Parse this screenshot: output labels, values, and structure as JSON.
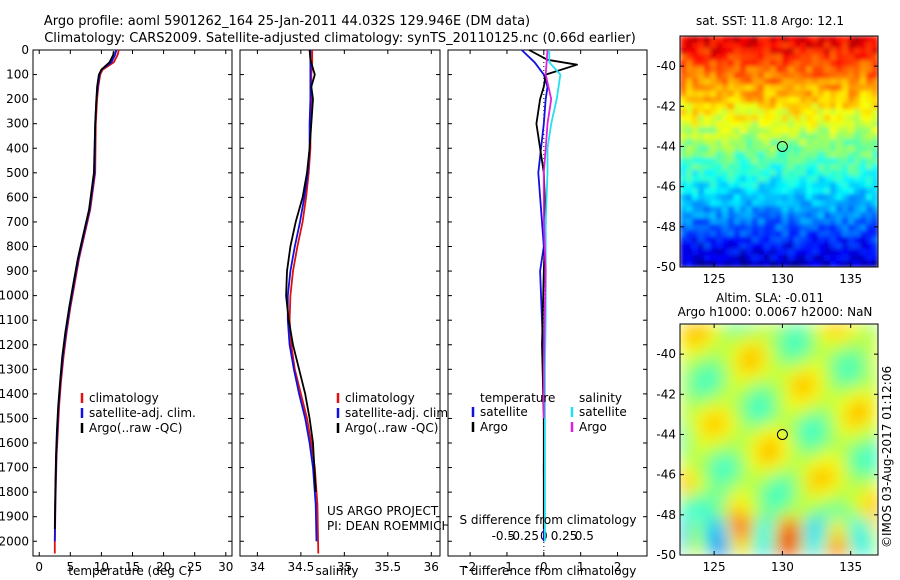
{
  "header": {
    "title_line1": "Argo profile: aoml 5901262_164 25-Jan-2011 44.032S 129.946E (DM data)",
    "title_line2": "Climatology: CARS2009. Satellite-adjusted climatology: synTS_20110125.nc (0.66d earlier)"
  },
  "colors": {
    "climatology": "#e01010",
    "satellite_adj": "#1010e0",
    "argo": "#000000",
    "sat_salinity": "#22e0f0",
    "argo_salinity": "#e020e0",
    "marker": "#000000"
  },
  "chart_data": [
    {
      "type": "line",
      "panel": "temperature",
      "xlabel": "temperature (deg C)",
      "xlim": [
        -1,
        31
      ],
      "xticks": [
        0,
        5,
        10,
        15,
        20,
        25,
        30
      ],
      "ylim": [
        2060,
        0
      ],
      "yticks": [
        0,
        100,
        200,
        300,
        400,
        500,
        600,
        700,
        800,
        900,
        1000,
        1100,
        1200,
        1300,
        1400,
        1500,
        1600,
        1700,
        1800,
        1900,
        2000
      ],
      "legend": [
        "climatology",
        "satellite-adj. clim.",
        "Argo(..raw -QC)"
      ],
      "series": [
        {
          "name": "climatology",
          "color": "#e01010",
          "x": [
            12.8,
            12.6,
            12.0,
            10.2,
            9.8,
            9.5,
            9.3,
            9.1,
            9.0,
            8.2,
            7.3,
            6.4,
            5.7,
            5.0,
            4.4,
            3.9,
            3.5,
            3.2,
            3.0,
            2.8,
            2.7,
            2.6,
            2.55,
            2.5,
            2.5
          ],
          "y": [
            0,
            20,
            50,
            80,
            100,
            150,
            200,
            300,
            500,
            650,
            750,
            850,
            950,
            1050,
            1150,
            1250,
            1350,
            1450,
            1550,
            1650,
            1750,
            1850,
            1950,
            2000,
            2050
          ]
        },
        {
          "name": "satellite-adj. clim.",
          "color": "#1010e0",
          "x": [
            12.4,
            12.2,
            11.6,
            10.0,
            9.7,
            9.4,
            9.2,
            9.0,
            8.9,
            8.1,
            7.2,
            6.3,
            5.6,
            4.9,
            4.3,
            3.8,
            3.4,
            3.1,
            2.9,
            2.75,
            2.65,
            2.58,
            2.52,
            2.5
          ],
          "y": [
            0,
            20,
            50,
            80,
            100,
            150,
            200,
            300,
            500,
            650,
            750,
            850,
            950,
            1050,
            1150,
            1250,
            1350,
            1450,
            1550,
            1650,
            1750,
            1850,
            1950,
            2000
          ]
        },
        {
          "name": "Argo(..raw -QC)",
          "color": "#000000",
          "x": [
            12.0,
            11.9,
            11.3,
            10.0,
            9.6,
            9.3,
            9.2,
            9.0,
            8.8,
            8.0,
            7.1,
            6.2,
            5.5,
            4.8,
            4.2,
            3.7,
            3.35,
            3.05,
            2.85,
            2.7,
            2.62,
            2.55,
            2.5
          ],
          "y": [
            5,
            20,
            50,
            80,
            100,
            150,
            200,
            300,
            500,
            650,
            750,
            850,
            950,
            1050,
            1150,
            1250,
            1350,
            1450,
            1550,
            1650,
            1750,
            1850,
            1950
          ]
        }
      ]
    },
    {
      "type": "line",
      "panel": "salinity",
      "xlabel": "salinity",
      "xlim": [
        33.8,
        36.1
      ],
      "xticks": [
        34,
        34.5,
        35,
        35.5,
        36
      ],
      "ylim": [
        2060,
        0
      ],
      "legend": [
        "climatology",
        "satellite-adj. clim.",
        "Argo(..raw -QC)"
      ],
      "annotation": [
        "US ARGO PROJECT",
        "PI: DEAN ROEMMICH"
      ],
      "series": [
        {
          "name": "climatology",
          "color": "#e01010",
          "x": [
            34.63,
            34.63,
            34.62,
            34.62,
            34.61,
            34.61,
            34.59,
            34.56,
            34.52,
            34.46,
            34.41,
            34.38,
            34.37,
            34.39,
            34.43,
            34.5,
            34.57,
            34.62,
            34.66,
            34.69,
            34.7
          ],
          "y": [
            0,
            50,
            100,
            200,
            300,
            400,
            500,
            600,
            700,
            800,
            900,
            1000,
            1100,
            1200,
            1300,
            1400,
            1500,
            1600,
            1700,
            1850,
            2050
          ]
        },
        {
          "name": "satellite-adj. clim.",
          "color": "#1010e0",
          "x": [
            34.61,
            34.61,
            34.61,
            34.61,
            34.6,
            34.6,
            34.58,
            34.54,
            34.49,
            34.43,
            34.38,
            34.35,
            34.35,
            34.37,
            34.42,
            34.48,
            34.55,
            34.6,
            34.64,
            34.67,
            34.68
          ],
          "y": [
            0,
            50,
            100,
            200,
            300,
            400,
            500,
            600,
            700,
            800,
            900,
            1000,
            1100,
            1200,
            1300,
            1400,
            1500,
            1600,
            1700,
            1850,
            2000
          ]
        },
        {
          "name": "Argo(..raw -QC)",
          "color": "#000000",
          "x": [
            34.6,
            34.61,
            34.66,
            34.62,
            34.64,
            34.62,
            34.6,
            34.57,
            34.52,
            34.44,
            34.38,
            34.34,
            34.33,
            34.36,
            34.41,
            34.48,
            34.55,
            34.6,
            34.64,
            34.67
          ],
          "y": [
            0,
            40,
            100,
            150,
            200,
            300,
            400,
            500,
            600,
            700,
            800,
            900,
            1000,
            1100,
            1200,
            1300,
            1400,
            1500,
            1600,
            1800
          ]
        }
      ]
    },
    {
      "type": "line",
      "panel": "difference",
      "xlabel": "T difference from climatology",
      "xlim": [
        -2.6,
        2.8
      ],
      "xticks": [
        -2,
        -1,
        0,
        1,
        2
      ],
      "top_label": "S difference from climatology",
      "top_ticks": [
        "-0.5",
        "-0.25",
        "0",
        "0.25",
        "0.5"
      ],
      "ylim": [
        2060,
        0
      ],
      "legend_titles": [
        "temperature",
        "salinity"
      ],
      "legend": [
        "satellite",
        "Argo",
        "satellite",
        "Argo"
      ],
      "series": [
        {
          "name": "satellite",
          "color": "#1010e0",
          "x": [
            -0.6,
            -0.25,
            0.0,
            0.1,
            0.05,
            0.0,
            -0.15,
            -0.05,
            0.0,
            -0.1,
            -0.05,
            0.0,
            0.02,
            0.0,
            0.01,
            0.0
          ],
          "y": [
            0,
            50,
            100,
            150,
            200,
            300,
            500,
            700,
            800,
            900,
            1100,
            1300,
            1500,
            1700,
            1900,
            2000
          ]
        },
        {
          "name": "Argo",
          "color": "#000000",
          "x": [
            -0.4,
            0.1,
            0.9,
            0.05,
            0.0,
            -0.1,
            -0.2,
            0.0,
            0.05,
            0.0,
            -0.05,
            0.0,
            0.0
          ],
          "y": [
            0,
            40,
            60,
            100,
            150,
            200,
            300,
            500,
            700,
            900,
            1200,
            1500,
            1950
          ]
        },
        {
          "name": "satellite",
          "color": "#22e0f0",
          "x": [
            0.15,
            0.15,
            0.45,
            0.35,
            0.2,
            0.1,
            0.1,
            0.05,
            0.05,
            0.05,
            0.03,
            0.03,
            0.03
          ],
          "y": [
            0,
            50,
            100,
            200,
            300,
            400,
            500,
            700,
            900,
            1100,
            1300,
            1600,
            2000
          ]
        },
        {
          "name": "Argo",
          "color": "#e020e0",
          "x": [
            0.1,
            0.05,
            0.2,
            0.1,
            0.05,
            0.0,
            0.0,
            0.05,
            0.02,
            0.0,
            0.0
          ],
          "y": [
            0,
            100,
            200,
            300,
            400,
            500,
            700,
            900,
            1100,
            1300,
            1500
          ]
        }
      ]
    },
    {
      "type": "heatmap",
      "panel": "sst_map",
      "title": "sat. SST: 11.8  Argo: 12.1",
      "xticks": [
        125,
        130,
        135
      ],
      "xlim": [
        122.5,
        137
      ],
      "yticks": [
        -40,
        -42,
        -44,
        -46,
        -48,
        -50
      ],
      "ylim": [
        -50,
        -38.5
      ],
      "marker": [
        130,
        -44
      ]
    },
    {
      "type": "heatmap",
      "panel": "sla_map",
      "title_line1": "Altim. SLA: -0.011",
      "title_line2": "Argo h1000: 0.0067  h2000: NaN",
      "xticks": [
        125,
        130,
        135
      ],
      "xlim": [
        122.5,
        137
      ],
      "yticks": [
        -40,
        -42,
        -44,
        -46,
        -48,
        -50
      ],
      "ylim": [
        -50,
        -38.5
      ],
      "marker": [
        130,
        -44
      ]
    }
  ],
  "footer": {
    "credit": "©IMOS 03-Aug-2017 01:12:06"
  }
}
